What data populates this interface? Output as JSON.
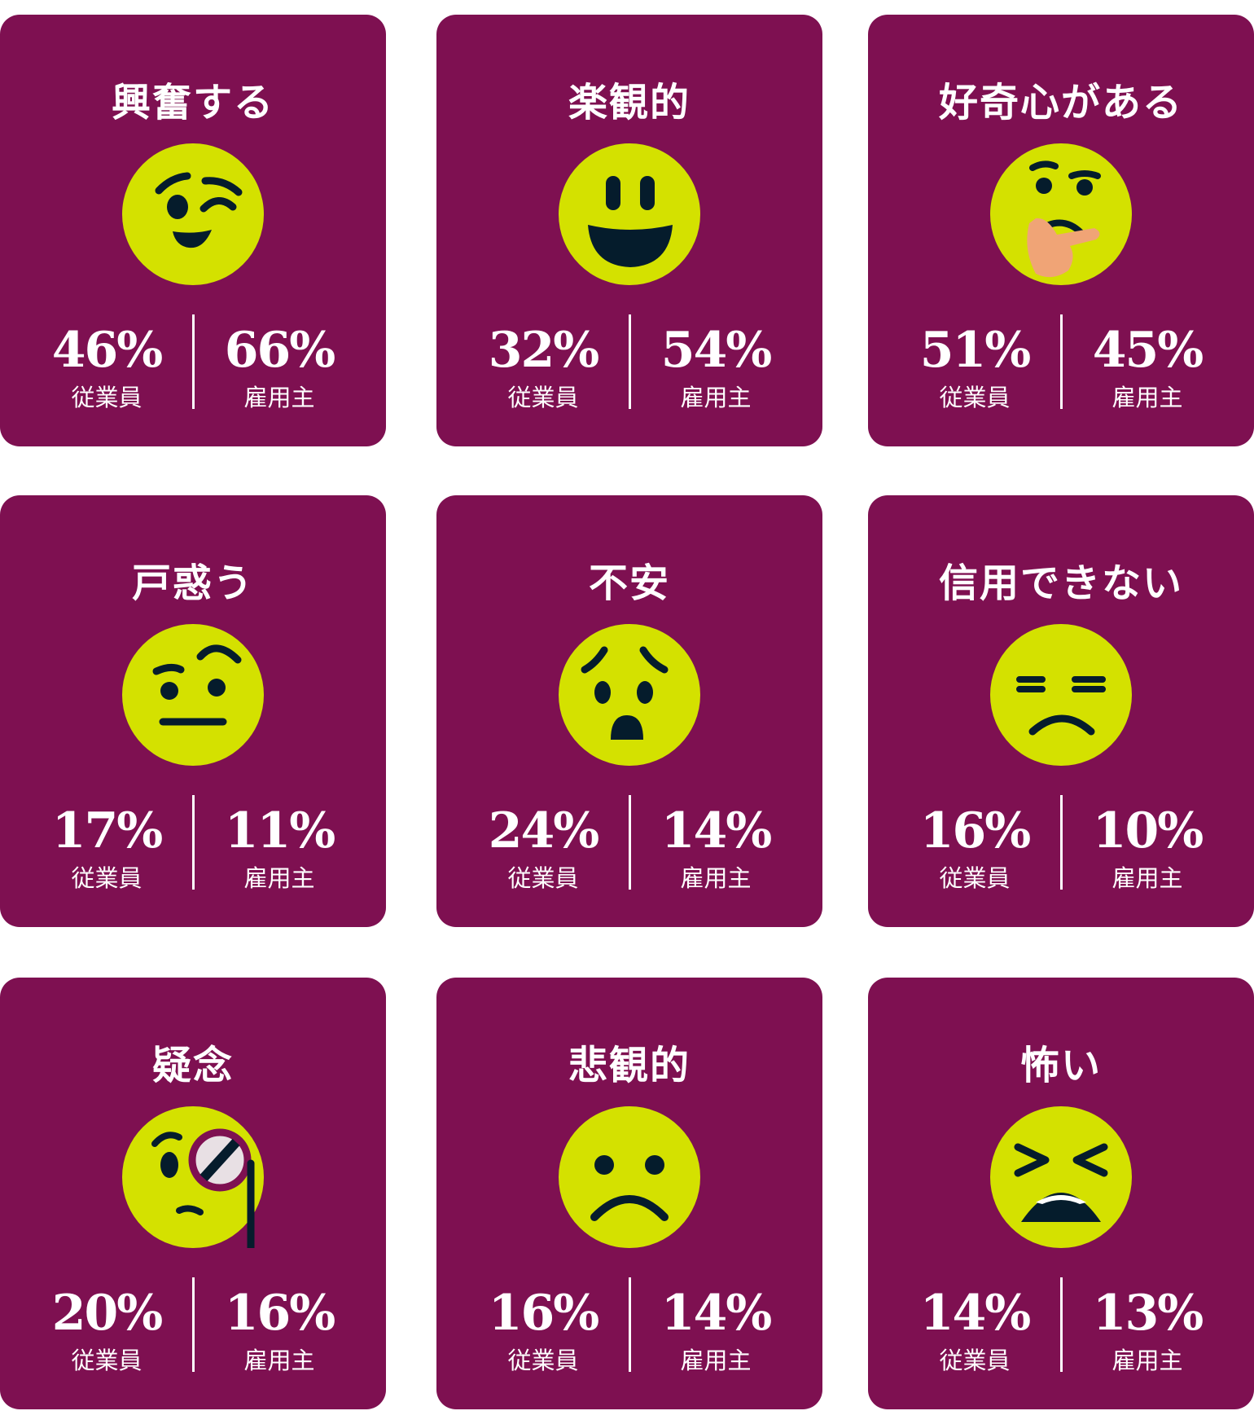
{
  "colors": {
    "card": "#7e1051",
    "face": "#d4e100",
    "feature": "#051c2c"
  },
  "cards": [
    {
      "title": "興奮する",
      "icon": "winking-face-icon",
      "employee": "46%",
      "employer": "66%",
      "employee_label": "従業員",
      "employer_label": "雇用主"
    },
    {
      "title": "楽観的",
      "icon": "grinning-face-icon",
      "employee": "32%",
      "employer": "54%",
      "employee_label": "従業員",
      "employer_label": "雇用主"
    },
    {
      "title": "好奇心がある",
      "icon": "thinking-face-icon",
      "employee": "51%",
      "employer": "45%",
      "employee_label": "従業員",
      "employer_label": "雇用主"
    },
    {
      "title": "戸惑う",
      "icon": "raised-eyebrow-face-icon",
      "employee": "17%",
      "employer": "11%",
      "employee_label": "従業員",
      "employer_label": "雇用主"
    },
    {
      "title": "不安",
      "icon": "worried-face-icon",
      "employee": "24%",
      "employer": "14%",
      "employee_label": "従業員",
      "employer_label": "雇用主"
    },
    {
      "title": "信用できない",
      "icon": "unamused-face-icon",
      "employee": "16%",
      "employer": "10%",
      "employee_label": "従業員",
      "employer_label": "雇用主"
    },
    {
      "title": "疑念",
      "icon": "monocle-face-icon",
      "employee": "20%",
      "employer": "16%",
      "employee_label": "従業員",
      "employer_label": "雇用主"
    },
    {
      "title": "悲観的",
      "icon": "frowning-face-icon",
      "employee": "16%",
      "employer": "14%",
      "employee_label": "従業員",
      "employer_label": "雇用主"
    },
    {
      "title": "怖い",
      "icon": "tired-face-icon",
      "employee": "14%",
      "employer": "13%",
      "employee_label": "従業員",
      "employer_label": "雇用主"
    }
  ]
}
